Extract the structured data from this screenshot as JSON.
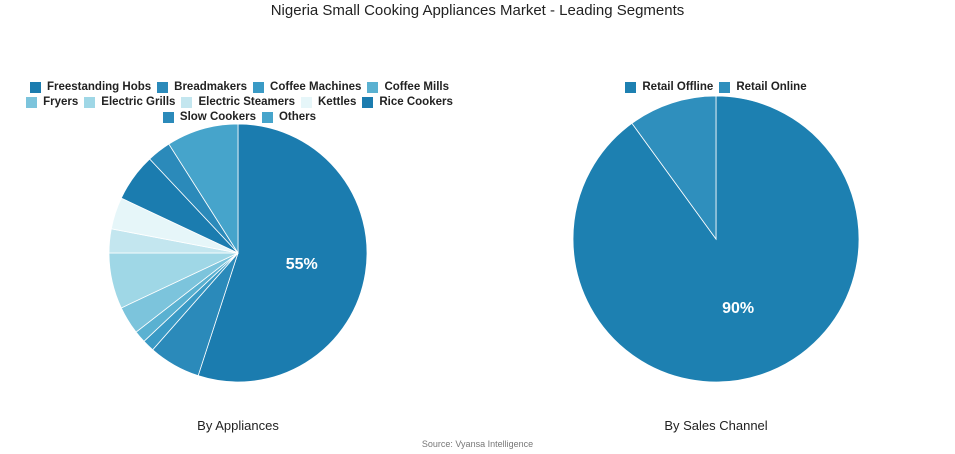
{
  "title": "Nigeria Small Cooking Appliances Market - Leading Segments",
  "source": "Source: Vyansa Intelligence",
  "chart_data": [
    {
      "type": "pie",
      "subtitle": "By Appliances",
      "legend_position": "top",
      "categories": [
        "Freestanding Hobs",
        "Breadmakers",
        "Coffee Machines",
        "Coffee Mills",
        "Fryers",
        "Electric Grills",
        "Electric Steamers",
        "Kettles",
        "Rice Cookers",
        "Slow Cookers",
        "Others"
      ],
      "values": [
        55,
        6.5,
        1.5,
        1.5,
        3.5,
        7,
        3,
        4,
        6,
        3,
        9
      ],
      "colors": [
        "#1b7caf",
        "#2b8aba",
        "#3a9ac5",
        "#5ab1d1",
        "#7cc4dc",
        "#9fd7e6",
        "#c3e6ef",
        "#e6f6f9",
        "#1b7caf",
        "#2b8aba",
        "#46a4cb"
      ],
      "data_labels": [
        "55%",
        "",
        "",
        "",
        "",
        "",
        "",
        "",
        "",
        "",
        ""
      ]
    },
    {
      "type": "pie",
      "subtitle": "By Sales Channel",
      "legend_position": "top",
      "categories": [
        "Retail Offline",
        "Retail Online"
      ],
      "values": [
        90,
        10
      ],
      "colors": [
        "#1d80b1",
        "#2f8fbd"
      ],
      "data_labels": [
        "90%",
        ""
      ]
    }
  ]
}
